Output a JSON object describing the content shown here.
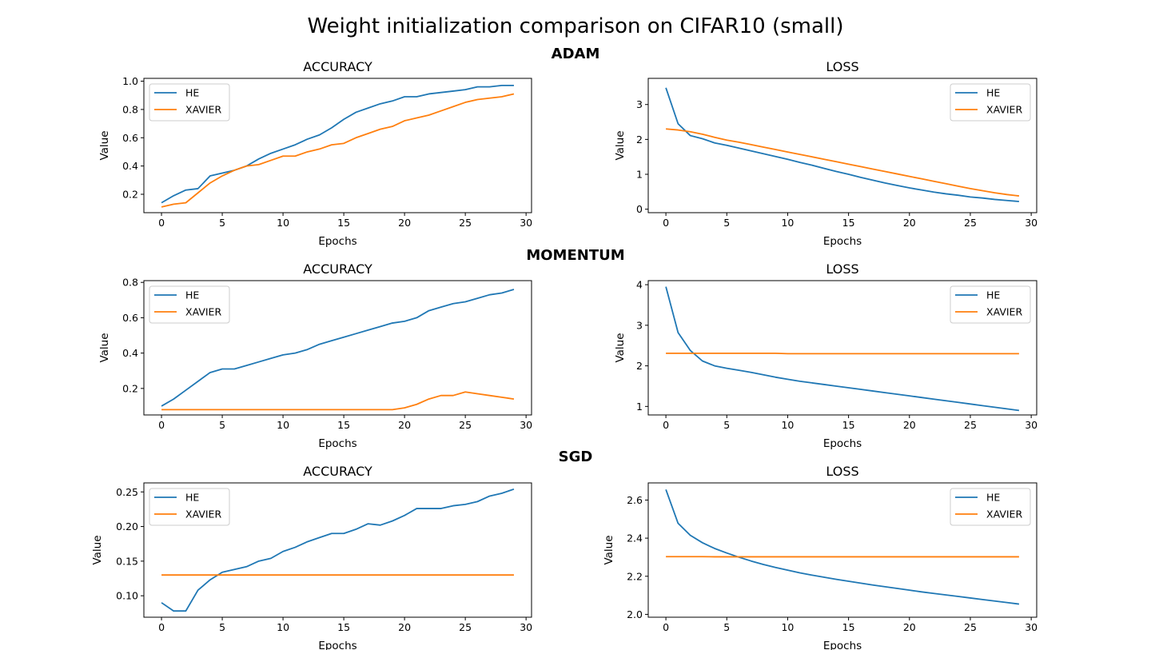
{
  "figure": {
    "title": "Weight initialization comparison on CIFAR10 (small)",
    "optimizers": [
      "ADAM",
      "MOMENTUM",
      "SGD"
    ]
  },
  "colors": {
    "HE": "#1f77b4",
    "XAVIER": "#ff7f0e",
    "axis": "#000000",
    "background": "#ffffff"
  },
  "chart_data": [
    {
      "type": "line",
      "group": "ADAM",
      "title": "ACCURACY",
      "xlabel": "Epochs",
      "ylabel": "Value",
      "xlim": [
        -1.45,
        30.45
      ],
      "ylim": [
        0.07,
        1.02
      ],
      "xticks": [
        0,
        5,
        10,
        15,
        20,
        25,
        30
      ],
      "xtick_labels": [
        "0",
        "5",
        "10",
        "15",
        "20",
        "25",
        "30"
      ],
      "yticks": [
        0.2,
        0.4,
        0.6,
        0.8,
        1.0
      ],
      "ytick_labels": [
        "0.2",
        "0.4",
        "0.6",
        "0.8",
        "1.0"
      ],
      "legend": "upper-left",
      "grid": false,
      "series": [
        {
          "name": "HE",
          "color": "#1f77b4",
          "values": [
            0.14,
            0.19,
            0.23,
            0.24,
            0.33,
            0.35,
            0.37,
            0.4,
            0.45,
            0.49,
            0.52,
            0.55,
            0.59,
            0.62,
            0.67,
            0.73,
            0.78,
            0.81,
            0.84,
            0.86,
            0.89,
            0.89,
            0.91,
            0.92,
            0.93,
            0.94,
            0.96,
            0.96,
            0.97,
            0.97
          ]
        },
        {
          "name": "XAVIER",
          "color": "#ff7f0e",
          "values": [
            0.11,
            0.13,
            0.14,
            0.21,
            0.28,
            0.33,
            0.37,
            0.4,
            0.41,
            0.44,
            0.47,
            0.47,
            0.5,
            0.52,
            0.55,
            0.56,
            0.6,
            0.63,
            0.66,
            0.68,
            0.72,
            0.74,
            0.76,
            0.79,
            0.82,
            0.85,
            0.87,
            0.88,
            0.89,
            0.91
          ]
        }
      ]
    },
    {
      "type": "line",
      "group": "ADAM",
      "title": "LOSS",
      "xlabel": "Epochs",
      "ylabel": "Value",
      "xlim": [
        -1.45,
        30.45
      ],
      "ylim": [
        -0.1,
        3.75
      ],
      "xticks": [
        0,
        5,
        10,
        15,
        20,
        25,
        30
      ],
      "xtick_labels": [
        "0",
        "5",
        "10",
        "15",
        "20",
        "25",
        "30"
      ],
      "yticks": [
        0,
        1,
        2,
        3
      ],
      "ytick_labels": [
        "0",
        "1",
        "2",
        "3"
      ],
      "legend": "upper-right",
      "grid": false,
      "series": [
        {
          "name": "HE",
          "color": "#1f77b4",
          "values": [
            3.48,
            2.45,
            2.11,
            2.02,
            1.9,
            1.83,
            1.75,
            1.67,
            1.59,
            1.51,
            1.43,
            1.34,
            1.26,
            1.17,
            1.08,
            1.0,
            0.91,
            0.83,
            0.75,
            0.68,
            0.61,
            0.55,
            0.49,
            0.44,
            0.4,
            0.35,
            0.32,
            0.28,
            0.25,
            0.22
          ]
        },
        {
          "name": "XAVIER",
          "color": "#ff7f0e",
          "values": [
            2.3,
            2.27,
            2.22,
            2.15,
            2.06,
            1.98,
            1.92,
            1.85,
            1.78,
            1.71,
            1.64,
            1.57,
            1.5,
            1.43,
            1.36,
            1.29,
            1.22,
            1.15,
            1.08,
            1.01,
            0.94,
            0.87,
            0.8,
            0.73,
            0.66,
            0.59,
            0.53,
            0.47,
            0.42,
            0.38
          ]
        }
      ]
    },
    {
      "type": "line",
      "group": "MOMENTUM",
      "title": "ACCURACY",
      "xlabel": "Epochs",
      "ylabel": "Value",
      "xlim": [
        -1.45,
        30.45
      ],
      "ylim": [
        0.05,
        0.81
      ],
      "xticks": [
        0,
        5,
        10,
        15,
        20,
        25,
        30
      ],
      "xtick_labels": [
        "0",
        "5",
        "10",
        "15",
        "20",
        "25",
        "30"
      ],
      "yticks": [
        0.2,
        0.4,
        0.6,
        0.8
      ],
      "ytick_labels": [
        "0.2",
        "0.4",
        "0.6",
        "0.8"
      ],
      "legend": "upper-left",
      "grid": false,
      "series": [
        {
          "name": "HE",
          "color": "#1f77b4",
          "values": [
            0.1,
            0.14,
            0.19,
            0.24,
            0.29,
            0.31,
            0.31,
            0.33,
            0.35,
            0.37,
            0.39,
            0.4,
            0.42,
            0.45,
            0.47,
            0.49,
            0.51,
            0.53,
            0.55,
            0.57,
            0.58,
            0.6,
            0.64,
            0.66,
            0.68,
            0.69,
            0.71,
            0.73,
            0.74,
            0.76
          ]
        },
        {
          "name": "XAVIER",
          "color": "#ff7f0e",
          "values": [
            0.08,
            0.08,
            0.08,
            0.08,
            0.08,
            0.08,
            0.08,
            0.08,
            0.08,
            0.08,
            0.08,
            0.08,
            0.08,
            0.08,
            0.08,
            0.08,
            0.08,
            0.08,
            0.08,
            0.08,
            0.09,
            0.11,
            0.14,
            0.16,
            0.16,
            0.18,
            0.17,
            0.16,
            0.15,
            0.14
          ]
        }
      ]
    },
    {
      "type": "line",
      "group": "MOMENTUM",
      "title": "LOSS",
      "xlabel": "Epochs",
      "ylabel": "Value",
      "xlim": [
        -1.45,
        30.45
      ],
      "ylim": [
        0.79,
        4.1
      ],
      "xticks": [
        0,
        5,
        10,
        15,
        20,
        25,
        30
      ],
      "xtick_labels": [
        "0",
        "5",
        "10",
        "15",
        "20",
        "25",
        "30"
      ],
      "yticks": [
        1,
        2,
        3,
        4
      ],
      "ytick_labels": [
        "1",
        "2",
        "3",
        "4"
      ],
      "legend": "upper-right",
      "grid": false,
      "series": [
        {
          "name": "HE",
          "color": "#1f77b4",
          "values": [
            3.95,
            2.82,
            2.38,
            2.12,
            2.0,
            1.94,
            1.89,
            1.84,
            1.78,
            1.72,
            1.67,
            1.62,
            1.58,
            1.54,
            1.5,
            1.46,
            1.42,
            1.38,
            1.34,
            1.3,
            1.26,
            1.22,
            1.18,
            1.14,
            1.1,
            1.06,
            1.02,
            0.98,
            0.94,
            0.9
          ]
        },
        {
          "name": "XAVIER",
          "color": "#ff7f0e",
          "values": [
            2.31,
            2.31,
            2.31,
            2.31,
            2.31,
            2.31,
            2.31,
            2.31,
            2.31,
            2.31,
            2.3,
            2.3,
            2.3,
            2.3,
            2.3,
            2.3,
            2.3,
            2.3,
            2.3,
            2.3,
            2.3,
            2.3,
            2.3,
            2.3,
            2.3,
            2.3,
            2.3,
            2.3,
            2.3,
            2.3
          ]
        }
      ]
    },
    {
      "type": "line",
      "group": "SGD",
      "title": "ACCURACY",
      "xlabel": "Epochs",
      "ylabel": "Value",
      "xlim": [
        -1.45,
        30.45
      ],
      "ylim": [
        0.069,
        0.263
      ],
      "xticks": [
        0,
        5,
        10,
        15,
        20,
        25,
        30
      ],
      "xtick_labels": [
        "0",
        "5",
        "10",
        "15",
        "20",
        "25",
        "30"
      ],
      "yticks": [
        0.1,
        0.15,
        0.2,
        0.25
      ],
      "ytick_labels": [
        "0.10",
        "0.15",
        "0.20",
        "0.25"
      ],
      "legend": "upper-left",
      "grid": false,
      "series": [
        {
          "name": "HE",
          "color": "#1f77b4",
          "values": [
            0.09,
            0.078,
            0.078,
            0.108,
            0.123,
            0.134,
            0.138,
            0.142,
            0.15,
            0.154,
            0.164,
            0.17,
            0.178,
            0.184,
            0.19,
            0.19,
            0.196,
            0.204,
            0.202,
            0.208,
            0.216,
            0.226,
            0.226,
            0.226,
            0.23,
            0.232,
            0.236,
            0.244,
            0.248,
            0.254
          ]
        },
        {
          "name": "XAVIER",
          "color": "#ff7f0e",
          "values": [
            0.13,
            0.13,
            0.13,
            0.13,
            0.13,
            0.13,
            0.13,
            0.13,
            0.13,
            0.13,
            0.13,
            0.13,
            0.13,
            0.13,
            0.13,
            0.13,
            0.13,
            0.13,
            0.13,
            0.13,
            0.13,
            0.13,
            0.13,
            0.13,
            0.13,
            0.13,
            0.13,
            0.13,
            0.13,
            0.13
          ]
        }
      ]
    },
    {
      "type": "line",
      "group": "SGD",
      "title": "LOSS",
      "xlabel": "Epochs",
      "ylabel": "Value",
      "xlim": [
        -1.45,
        30.45
      ],
      "ylim": [
        1.985,
        2.69
      ],
      "xticks": [
        0,
        5,
        10,
        15,
        20,
        25,
        30
      ],
      "xtick_labels": [
        "0",
        "5",
        "10",
        "15",
        "20",
        "25",
        "30"
      ],
      "yticks": [
        2.0,
        2.2,
        2.4,
        2.6
      ],
      "ytick_labels": [
        "2.0",
        "2.2",
        "2.4",
        "2.6"
      ],
      "legend": "upper-right",
      "grid": false,
      "series": [
        {
          "name": "HE",
          "color": "#1f77b4",
          "values": [
            2.655,
            2.478,
            2.415,
            2.376,
            2.346,
            2.322,
            2.3,
            2.28,
            2.262,
            2.246,
            2.232,
            2.218,
            2.206,
            2.195,
            2.184,
            2.174,
            2.164,
            2.154,
            2.145,
            2.136,
            2.127,
            2.118,
            2.11,
            2.102,
            2.094,
            2.086,
            2.078,
            2.07,
            2.062,
            2.054
          ]
        },
        {
          "name": "XAVIER",
          "color": "#ff7f0e",
          "values": [
            2.303,
            2.303,
            2.303,
            2.303,
            2.302,
            2.302,
            2.302,
            2.302,
            2.302,
            2.302,
            2.302,
            2.302,
            2.302,
            2.302,
            2.302,
            2.302,
            2.302,
            2.302,
            2.302,
            2.302,
            2.302,
            2.302,
            2.302,
            2.302,
            2.302,
            2.302,
            2.302,
            2.302,
            2.302,
            2.302
          ]
        }
      ]
    }
  ]
}
